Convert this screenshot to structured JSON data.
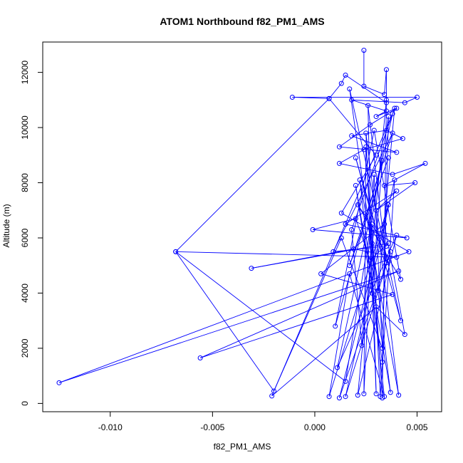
{
  "chart_data": {
    "type": "line",
    "title": "ATOM1 Northbound f82_PM1_AMS",
    "xlabel": "f82_PM1_AMS",
    "ylabel": "Altitude (m)",
    "xlim": [
      -0.0133,
      0.0062
    ],
    "ylim": [
      -300,
      13100
    ],
    "x_ticks": [
      -0.01,
      -0.005,
      0.0,
      0.005
    ],
    "x_tick_labels": [
      "-0.010",
      "-0.005",
      "0.000",
      "0.005"
    ],
    "y_ticks": [
      0,
      2000,
      4000,
      6000,
      8000,
      10000,
      12000
    ],
    "y_tick_labels": [
      "0",
      "2000",
      "4000",
      "6000",
      "8000",
      "10000",
      "12000"
    ],
    "grid": false,
    "legend": "none",
    "series_color": "#0000ff",
    "series": [
      {
        "points": [
          {
            "x": 0.0024,
            "y": 12800
          },
          {
            "x": 0.0024,
            "y": 11500
          },
          {
            "x": 0.0034,
            "y": 11200
          },
          {
            "x": 0.0035,
            "y": 12100
          },
          {
            "x": 0.0035,
            "y": 10900
          },
          {
            "x": 0.0015,
            "y": 11900
          },
          {
            "x": 0.0013,
            "y": 11600
          },
          {
            "x": 0.0007,
            "y": 11050
          },
          {
            "x": -0.0011,
            "y": 11100
          },
          {
            "x": 0.005,
            "y": 11100
          },
          {
            "x": 0.0044,
            "y": 10900
          },
          {
            "x": 0.0018,
            "y": 11000
          },
          {
            "x": 0.0035,
            "y": 10600
          },
          {
            "x": 0.003,
            "y": 10400
          },
          {
            "x": 0.004,
            "y": 10700
          },
          {
            "x": 0.0027,
            "y": 10100
          },
          {
            "x": 0.0012,
            "y": 9300
          },
          {
            "x": 0.004,
            "y": 9100
          },
          {
            "x": 0.0018,
            "y": 9700
          },
          {
            "x": 0.0035,
            "y": 9900
          },
          {
            "x": 0.0043,
            "y": 9600
          },
          {
            "x": 0.0024,
            "y": 9200
          },
          {
            "x": 0.0012,
            "y": 8700
          },
          {
            "x": 0.0038,
            "y": 8300
          },
          {
            "x": 0.0054,
            "y": 8700
          },
          {
            "x": 0.0034,
            "y": 7900
          },
          {
            "x": 0.0049,
            "y": 8000
          },
          {
            "x": 0.003,
            "y": 7000
          },
          {
            "x": 0.004,
            "y": 7700
          },
          {
            "x": 0.0015,
            "y": 6500
          },
          {
            "x": 0.0045,
            "y": 6000
          },
          {
            "x": -0.0001,
            "y": 6300
          },
          {
            "x": 0.002,
            "y": 6700
          },
          {
            "x": 0.0027,
            "y": 5200
          },
          {
            "x": 0.0036,
            "y": 5800
          },
          {
            "x": -0.0031,
            "y": 4900
          },
          {
            "x": 0.0019,
            "y": 5600
          },
          {
            "x": 0.004,
            "y": 5300
          },
          {
            "x": -0.0068,
            "y": 5500
          },
          {
            "x": 0.0007,
            "y": 11050
          },
          {
            "x": 0.003,
            "y": 9000
          },
          {
            "x": 0.0013,
            "y": 6900
          },
          {
            "x": 0.0046,
            "y": 5500
          },
          {
            "x": -0.0125,
            "y": 750
          },
          {
            "x": 0.0041,
            "y": 4800
          },
          {
            "x": -0.0056,
            "y": 1650
          },
          {
            "x": 0.0038,
            "y": 3950
          },
          {
            "x": 0.0003,
            "y": 4700
          },
          {
            "x": 0.0034,
            "y": 6500
          },
          {
            "x": 0.0044,
            "y": 2500
          },
          {
            "x": 0.003,
            "y": 3500
          },
          {
            "x": -0.0021,
            "y": 270
          },
          {
            "x": 0.0038,
            "y": 10500
          },
          {
            "x": 0.0011,
            "y": 1300
          },
          {
            "x": 0.004,
            "y": 6100
          },
          {
            "x": 0.0021,
            "y": 300
          },
          {
            "x": 0.0035,
            "y": 11000
          },
          {
            "x": 0.0033,
            "y": 200
          },
          {
            "x": 0.0025,
            "y": 9300
          },
          {
            "x": 0.0024,
            "y": 350
          },
          {
            "x": 0.0028,
            "y": 6500
          },
          {
            "x": 0.0032,
            "y": 250
          },
          {
            "x": 0.0039,
            "y": 8100
          },
          {
            "x": 0.0015,
            "y": 250
          },
          {
            "x": 0.0037,
            "y": 5500
          },
          {
            "x": 0.0012,
            "y": 200
          },
          {
            "x": 0.0036,
            "y": 7200
          },
          {
            "x": 0.0007,
            "y": 250
          },
          {
            "x": 0.0017,
            "y": 4700
          },
          {
            "x": 0.0034,
            "y": 250
          },
          {
            "x": 0.0022,
            "y": 8100
          },
          {
            "x": 0.0041,
            "y": 300
          },
          {
            "x": 0.0025,
            "y": 9800
          },
          {
            "x": 0.003,
            "y": 350
          },
          {
            "x": 0.0028,
            "y": 5800
          },
          {
            "x": 0.0037,
            "y": 400
          },
          {
            "x": 0.002,
            "y": 7900
          },
          {
            "x": 0.0033,
            "y": 1500
          },
          {
            "x": 0.0036,
            "y": 10400
          },
          {
            "x": 0.0015,
            "y": 800
          },
          {
            "x": -0.0068,
            "y": 5500
          },
          {
            "x": -0.002,
            "y": 450
          },
          {
            "x": 0.0013,
            "y": 6000
          },
          {
            "x": 0.0033,
            "y": 2000
          },
          {
            "x": 0.0029,
            "y": 8300
          },
          {
            "x": 0.0023,
            "y": 2100
          },
          {
            "x": 0.0018,
            "y": 6300
          },
          {
            "x": 0.0039,
            "y": 10700
          },
          {
            "x": 0.0031,
            "y": 4100
          },
          {
            "x": 0.0017,
            "y": 11400
          },
          {
            "x": 0.0042,
            "y": 3000
          },
          {
            "x": 0.002,
            "y": 8900
          },
          {
            "x": 0.0035,
            "y": 5100
          },
          {
            "x": 0.0026,
            "y": 10800
          },
          {
            "x": 0.0028,
            "y": 4000
          },
          {
            "x": 0.0033,
            "y": 8800
          },
          {
            "x": 0.001,
            "y": 2800
          },
          {
            "x": 0.0029,
            "y": 9900
          },
          {
            "x": 0.0042,
            "y": 4500
          },
          {
            "x": 0.0021,
            "y": 7200
          },
          {
            "x": 0.0035,
            "y": 5700
          },
          {
            "x": 0.0009,
            "y": 5500
          },
          {
            "x": 0.0038,
            "y": 9800
          },
          {
            "x": 0.0017,
            "y": 5000
          },
          {
            "x": 0.0036,
            "y": 8900
          }
        ]
      }
    ]
  }
}
